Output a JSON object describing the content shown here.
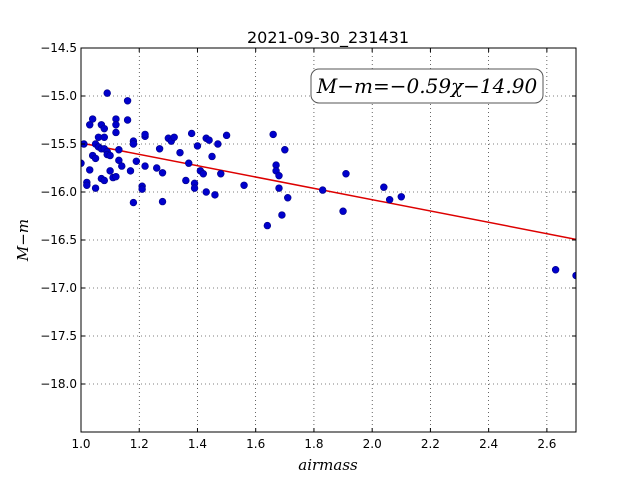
{
  "chart_data": {
    "type": "scatter",
    "title": "2021-09-30_231431",
    "xlabel": "airmass",
    "ylabel": "M−m",
    "xlim": [
      1.0,
      2.7
    ],
    "ylim": [
      -18.5,
      -14.5
    ],
    "y_inverted": true,
    "grid": true,
    "x_ticks": [
      1.0,
      1.2,
      1.4,
      1.6,
      1.8,
      2.0,
      2.2,
      2.4,
      2.6
    ],
    "x_tick_labels": [
      "1.0",
      "1.2",
      "1.4",
      "1.6",
      "1.8",
      "2.0",
      "2.2",
      "2.4",
      "2.6"
    ],
    "y_ticks": [
      -14.5,
      -15.0,
      -15.5,
      -16.0,
      -16.5,
      -17.0,
      -17.5,
      -18.0
    ],
    "y_tick_labels": [
      "−14.5",
      "−15.0",
      "−15.5",
      "−16.0",
      "−16.5",
      "−17.0",
      "−17.5",
      "−18.0"
    ],
    "annotation": "M−m=−0.59χ−14.90",
    "fit": {
      "slope": -0.59,
      "intercept": -14.9,
      "color": "#dd0000"
    },
    "marker_color": "#0000cc",
    "series": [
      {
        "x": [
          1.0,
          1.01,
          1.02,
          1.02,
          1.03,
          1.03,
          1.04,
          1.04,
          1.05,
          1.05,
          1.05,
          1.06,
          1.06,
          1.07,
          1.07,
          1.07,
          1.08,
          1.08,
          1.08,
          1.08,
          1.09,
          1.09,
          1.09,
          1.1,
          1.1,
          1.11,
          1.12,
          1.12,
          1.12,
          1.12,
          1.13,
          1.13,
          1.14,
          1.16,
          1.16,
          1.17,
          1.18,
          1.18,
          1.18,
          1.19,
          1.21,
          1.21,
          1.22,
          1.22,
          1.22,
          1.26,
          1.27,
          1.28,
          1.28,
          1.3,
          1.31,
          1.32,
          1.34,
          1.36,
          1.37,
          1.38,
          1.39,
          1.39,
          1.4,
          1.41,
          1.42,
          1.43,
          1.43,
          1.44,
          1.45,
          1.46,
          1.47,
          1.48,
          1.5,
          1.56,
          1.64,
          1.66,
          1.67,
          1.67,
          1.68,
          1.68,
          1.69,
          1.7,
          1.71,
          1.83,
          1.9,
          1.91,
          2.04,
          2.06,
          2.1,
          2.63,
          2.7
        ],
        "y": [
          -15.7,
          -15.5,
          -15.9,
          -15.93,
          -15.3,
          -15.77,
          -15.62,
          -15.24,
          -15.5,
          -15.65,
          -15.96,
          -15.43,
          -15.53,
          -15.3,
          -15.55,
          -15.86,
          -15.34,
          -15.43,
          -15.55,
          -15.88,
          -14.97,
          -15.58,
          -15.61,
          -15.78,
          -15.62,
          -15.85,
          -15.24,
          -15.38,
          -15.84,
          -15.3,
          -15.56,
          -15.67,
          -15.73,
          -15.05,
          -15.25,
          -15.78,
          -16.11,
          -15.47,
          -15.5,
          -15.68,
          -15.94,
          -15.97,
          -15.42,
          -15.4,
          -15.73,
          -15.75,
          -15.55,
          -16.1,
          -15.8,
          -15.44,
          -15.47,
          -15.43,
          -15.59,
          -15.88,
          -15.7,
          -15.39,
          -15.91,
          -15.96,
          -15.52,
          -15.78,
          -15.81,
          -16.0,
          -15.44,
          -15.46,
          -15.63,
          -16.03,
          -15.5,
          -15.81,
          -15.41,
          -15.93,
          -16.35,
          -15.4,
          -15.72,
          -15.78,
          -15.96,
          -15.83,
          -16.24,
          -15.56,
          -16.06,
          -15.98,
          -16.2,
          -15.81,
          -15.95,
          -16.08,
          -16.05,
          -16.81,
          -16.87
        ]
      }
    ]
  }
}
